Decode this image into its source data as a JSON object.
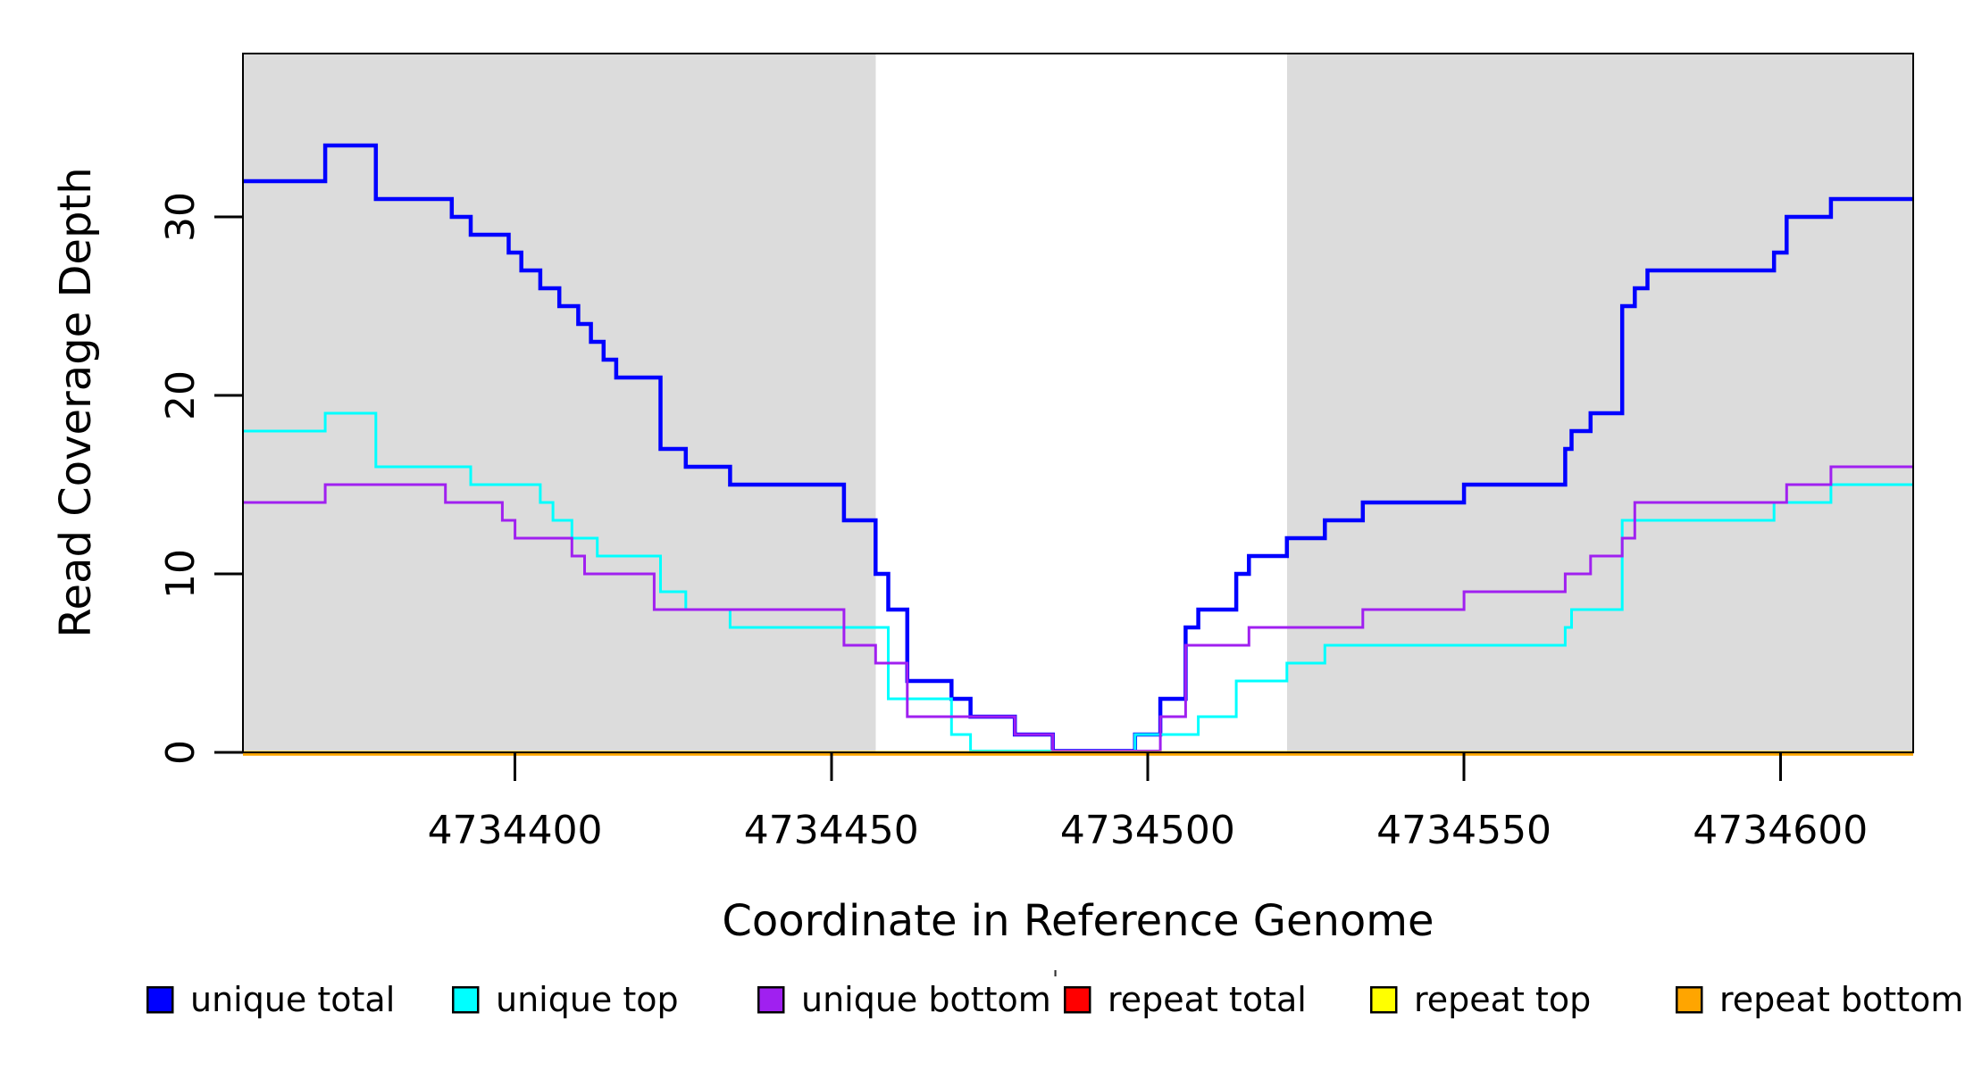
{
  "axes": {
    "xlabel": "Coordinate in Reference Genome",
    "ylabel": "Read Coverage Depth"
  },
  "legend": {
    "stray_mark": "'",
    "items": [
      {
        "label": "unique total",
        "color": "#0000FF"
      },
      {
        "label": "unique top",
        "color": "#00FFFF"
      },
      {
        "label": "unique bottom",
        "color": "#A020F0"
      },
      {
        "label": "repeat total",
        "color": "#FF0000"
      },
      {
        "label": "repeat top",
        "color": "#FFFF00"
      },
      {
        "label": "repeat bottom",
        "color": "#FFA500"
      }
    ]
  },
  "chart_data": {
    "type": "line",
    "step": true,
    "title": "",
    "xlabel": "Coordinate in Reference Genome",
    "ylabel": "Read Coverage Depth",
    "xlim": [
      4734357,
      4734621
    ],
    "ylim": [
      0,
      39
    ],
    "grid": false,
    "legend_position": "bottom",
    "x_ticks": [
      4734400,
      4734450,
      4734500,
      4734550,
      4734600
    ],
    "x_tick_labels": [
      "4734400",
      "4734450",
      "4734500",
      "4734550",
      "4734600"
    ],
    "y_ticks": [
      0,
      10,
      20,
      30
    ],
    "y_tick_labels": [
      "0",
      "10",
      "20",
      "30"
    ],
    "plot_background": "#FFFFFF",
    "shaded_regions": [
      {
        "name": "unique-region-left",
        "x0": 4734357,
        "x1": 4734457,
        "color": "#DCDCDC"
      },
      {
        "name": "unique-region-right",
        "x0": 4734522,
        "x1": 4734621,
        "color": "#DCDCDC"
      }
    ],
    "series": [
      {
        "name": "unique total",
        "color": "#0000FF",
        "width": 4.5,
        "steps": [
          [
            4734357,
            32
          ],
          [
            4734370,
            34
          ],
          [
            4734378,
            31
          ],
          [
            4734390,
            30
          ],
          [
            4734393,
            29
          ],
          [
            4734399,
            28
          ],
          [
            4734401,
            27
          ],
          [
            4734404,
            26
          ],
          [
            4734407,
            25
          ],
          [
            4734410,
            24
          ],
          [
            4734412,
            23
          ],
          [
            4734414,
            22
          ],
          [
            4734416,
            21
          ],
          [
            4734423,
            17
          ],
          [
            4734427,
            16
          ],
          [
            4734434,
            15
          ],
          [
            4734452,
            13
          ],
          [
            4734457,
            10
          ],
          [
            4734459,
            8
          ],
          [
            4734462,
            4
          ],
          [
            4734469,
            3
          ],
          [
            4734472,
            2
          ],
          [
            4734479,
            1
          ],
          [
            4734485,
            0
          ],
          [
            4734498,
            1
          ],
          [
            4734502,
            3
          ],
          [
            4734506,
            7
          ],
          [
            4734508,
            8
          ],
          [
            4734514,
            10
          ],
          [
            4734516,
            11
          ],
          [
            4734522,
            12
          ],
          [
            4734528,
            13
          ],
          [
            4734534,
            14
          ],
          [
            4734550,
            15
          ],
          [
            4734566,
            17
          ],
          [
            4734567,
            18
          ],
          [
            4734570,
            19
          ],
          [
            4734575,
            25
          ],
          [
            4734577,
            26
          ],
          [
            4734579,
            27
          ],
          [
            4734599,
            28
          ],
          [
            4734601,
            30
          ],
          [
            4734608,
            31
          ]
        ],
        "end": 4734621
      },
      {
        "name": "unique top",
        "color": "#00FFFF",
        "width": 3,
        "steps": [
          [
            4734357,
            18
          ],
          [
            4734370,
            19
          ],
          [
            4734378,
            16
          ],
          [
            4734393,
            15
          ],
          [
            4734404,
            14
          ],
          [
            4734406,
            13
          ],
          [
            4734409,
            12
          ],
          [
            4734413,
            11
          ],
          [
            4734423,
            9
          ],
          [
            4734427,
            8
          ],
          [
            4734434,
            7
          ],
          [
            4734459,
            3
          ],
          [
            4734469,
            1
          ],
          [
            4734472,
            0
          ],
          [
            4734498,
            1
          ],
          [
            4734508,
            2
          ],
          [
            4734514,
            4
          ],
          [
            4734522,
            5
          ],
          [
            4734528,
            6
          ],
          [
            4734566,
            7
          ],
          [
            4734567,
            8
          ],
          [
            4734575,
            13
          ],
          [
            4734599,
            14
          ],
          [
            4734608,
            15
          ]
        ],
        "end": 4734621
      },
      {
        "name": "unique bottom",
        "color": "#A020F0",
        "width": 3,
        "steps": [
          [
            4734357,
            14
          ],
          [
            4734370,
            15
          ],
          [
            4734389,
            14
          ],
          [
            4734398,
            13
          ],
          [
            4734400,
            12
          ],
          [
            4734409,
            11
          ],
          [
            4734411,
            10
          ],
          [
            4734422,
            8
          ],
          [
            4734452,
            6
          ],
          [
            4734457,
            5
          ],
          [
            4734462,
            2
          ],
          [
            4734479,
            1
          ],
          [
            4734485,
            0
          ],
          [
            4734502,
            2
          ],
          [
            4734506,
            6
          ],
          [
            4734516,
            7
          ],
          [
            4734534,
            8
          ],
          [
            4734550,
            9
          ],
          [
            4734566,
            10
          ],
          [
            4734570,
            11
          ],
          [
            4734575,
            12
          ],
          [
            4734577,
            14
          ],
          [
            4734601,
            15
          ],
          [
            4734608,
            16
          ]
        ],
        "end": 4734621
      },
      {
        "name": "repeat total",
        "color": "#FF0000",
        "width": 3,
        "steps": [
          [
            4734357,
            0
          ]
        ],
        "end": 4734621
      },
      {
        "name": "repeat top",
        "color": "#FFFF00",
        "width": 3,
        "steps": [
          [
            4734357,
            0
          ]
        ],
        "end": 4734621
      },
      {
        "name": "repeat bottom",
        "color": "#FFA500",
        "width": 5,
        "steps": [
          [
            4734357,
            0
          ]
        ],
        "end": 4734621
      }
    ]
  }
}
